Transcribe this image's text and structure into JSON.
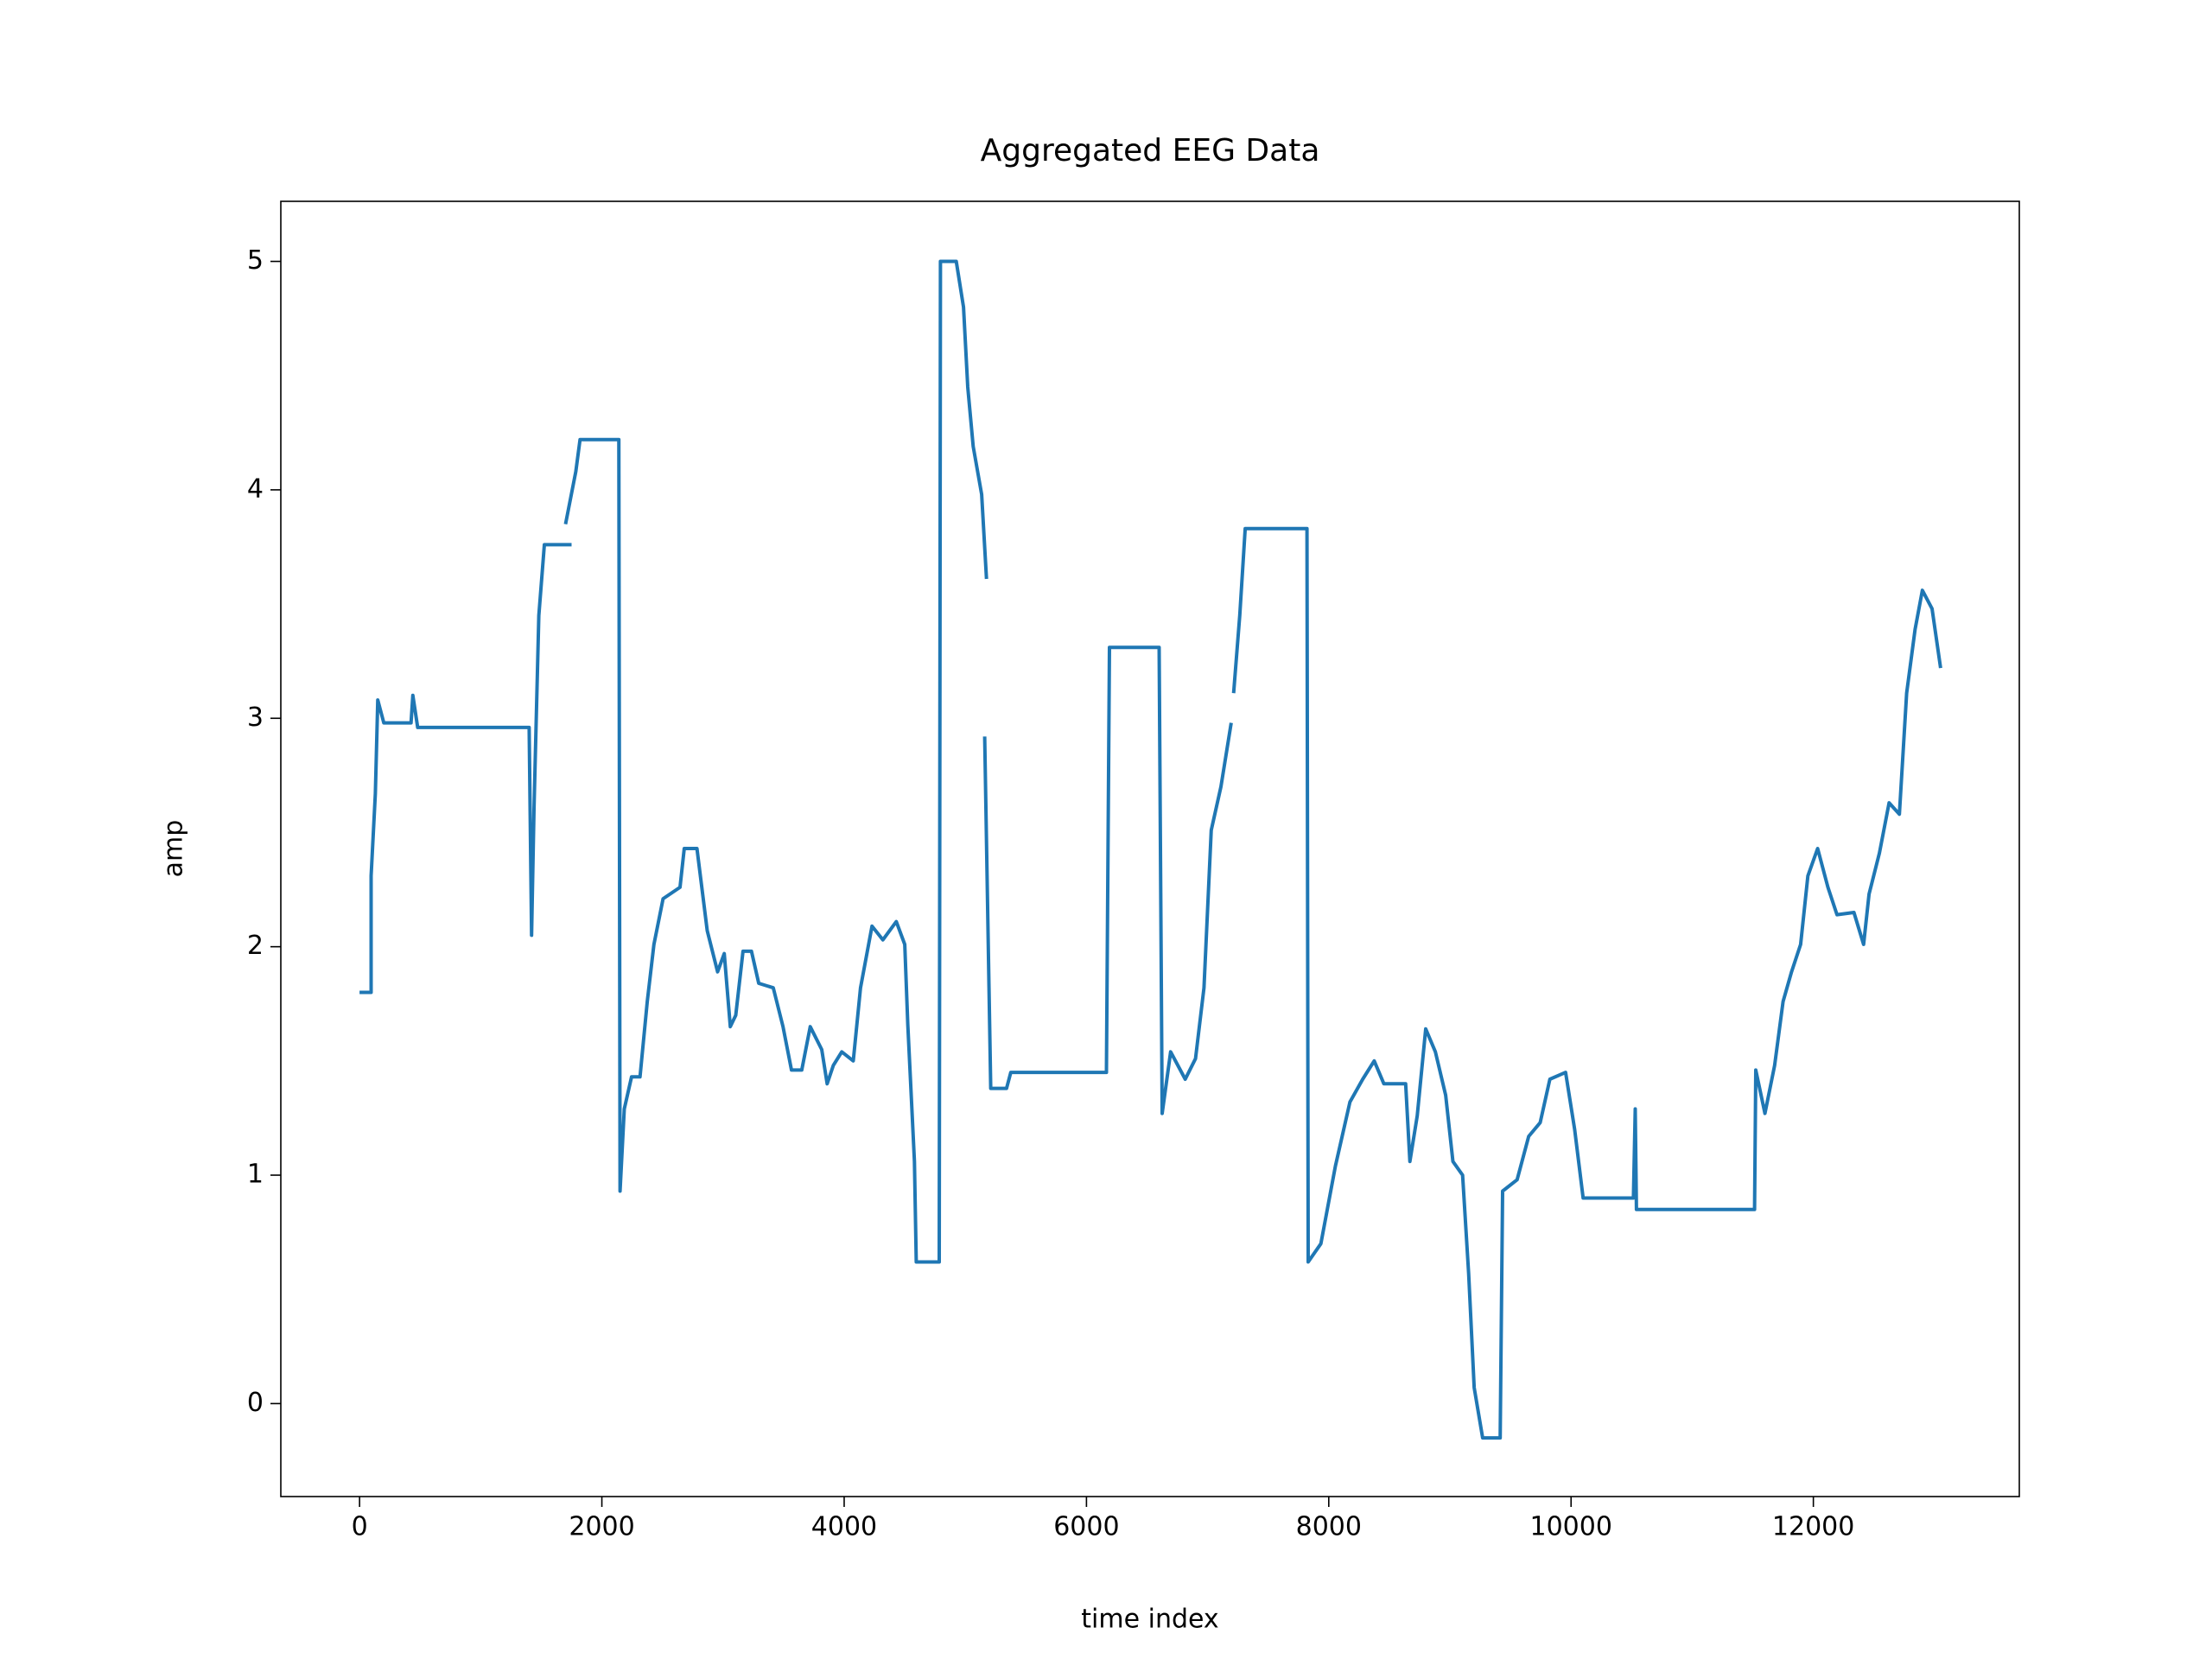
{
  "chart_data": {
    "type": "line",
    "title": "Aggregated EEG Data",
    "x_label": "time index",
    "y_label": "amp",
    "color": "#1f77b4",
    "x": [
      0,
      95,
      95,
      130,
      150,
      200,
      425,
      440,
      480,
      1400,
      1420,
      1440,
      1480,
      1525,
      1750,
      null,
      1700,
      1785,
      1820,
      2140,
      2150,
      2185,
      2245,
      2315,
      2375,
      2430,
      2505,
      2645,
      2680,
      2785,
      2870,
      2955,
      3010,
      3060,
      3105,
      3165,
      3235,
      3295,
      3415,
      3495,
      3565,
      3650,
      3720,
      3815,
      3860,
      3910,
      3980,
      4075,
      4135,
      4230,
      4320,
      4430,
      4500,
      4525,
      4580,
      4595,
      4785,
      4795,
      4925,
      4985,
      5020,
      5065,
      5135,
      5175,
      null,
      5160,
      5210,
      5340,
      5375,
      6165,
      6190,
      6600,
      6625,
      6695,
      6815,
      6900,
      6970,
      7030,
      7110,
      7195,
      null,
      7215,
      7265,
      7310,
      7820,
      7830,
      7935,
      8055,
      8175,
      8280,
      8375,
      8455,
      8635,
      8670,
      8730,
      8800,
      8880,
      8965,
      9025,
      9105,
      9155,
      9200,
      9270,
      9415,
      9435,
      9555,
      9650,
      9745,
      9825,
      9955,
      10030,
      10100,
      10515,
      10530,
      10540,
      11515,
      11525,
      11600,
      11680,
      11750,
      11820,
      11895,
      11955,
      12035,
      12120,
      12195,
      12335,
      12415,
      12460,
      12545,
      12625,
      12710,
      12770,
      12840,
      12900,
      12980,
      13050
    ],
    "values": [
      1.8,
      1.8,
      2.31,
      2.67,
      3.08,
      2.98,
      2.98,
      3.1,
      2.96,
      2.96,
      2.05,
      2.6,
      3.45,
      3.76,
      3.76,
      null,
      3.85,
      4.08,
      4.22,
      4.22,
      0.93,
      1.29,
      1.43,
      1.43,
      1.76,
      2.01,
      2.21,
      2.26,
      2.43,
      2.43,
      2.07,
      1.89,
      1.97,
      1.65,
      1.7,
      1.98,
      1.98,
      1.84,
      1.82,
      1.65,
      1.46,
      1.46,
      1.65,
      1.55,
      1.4,
      1.48,
      1.54,
      1.5,
      1.82,
      2.09,
      2.03,
      2.11,
      2.01,
      1.66,
      1.06,
      0.62,
      0.62,
      5.0,
      5.0,
      4.8,
      4.45,
      4.19,
      3.98,
      3.61,
      null,
      2.92,
      1.38,
      1.38,
      1.45,
      1.45,
      3.31,
      3.31,
      1.27,
      1.54,
      1.42,
      1.51,
      1.82,
      2.51,
      2.7,
      2.98,
      null,
      3.11,
      3.45,
      3.83,
      3.83,
      0.62,
      0.7,
      1.04,
      1.32,
      1.42,
      1.5,
      1.4,
      1.4,
      1.06,
      1.26,
      1.64,
      1.54,
      1.35,
      1.06,
      1.0,
      0.57,
      0.07,
      -0.15,
      -0.15,
      0.93,
      0.98,
      1.17,
      1.23,
      1.42,
      1.45,
      1.2,
      0.9,
      0.9,
      1.29,
      0.85,
      0.85,
      1.46,
      1.27,
      1.48,
      1.76,
      1.89,
      2.01,
      2.31,
      2.43,
      2.26,
      2.14,
      2.15,
      2.01,
      2.23,
      2.41,
      2.63,
      2.58,
      3.11,
      3.39,
      3.56,
      3.48,
      3.22
    ],
    "xlim": [
      -650,
      13700
    ],
    "ylim": [
      -0.407,
      5.263
    ],
    "xticks": [
      0,
      2000,
      4000,
      6000,
      8000,
      10000,
      12000
    ],
    "yticks": [
      0,
      1,
      2,
      3,
      4,
      5
    ]
  }
}
